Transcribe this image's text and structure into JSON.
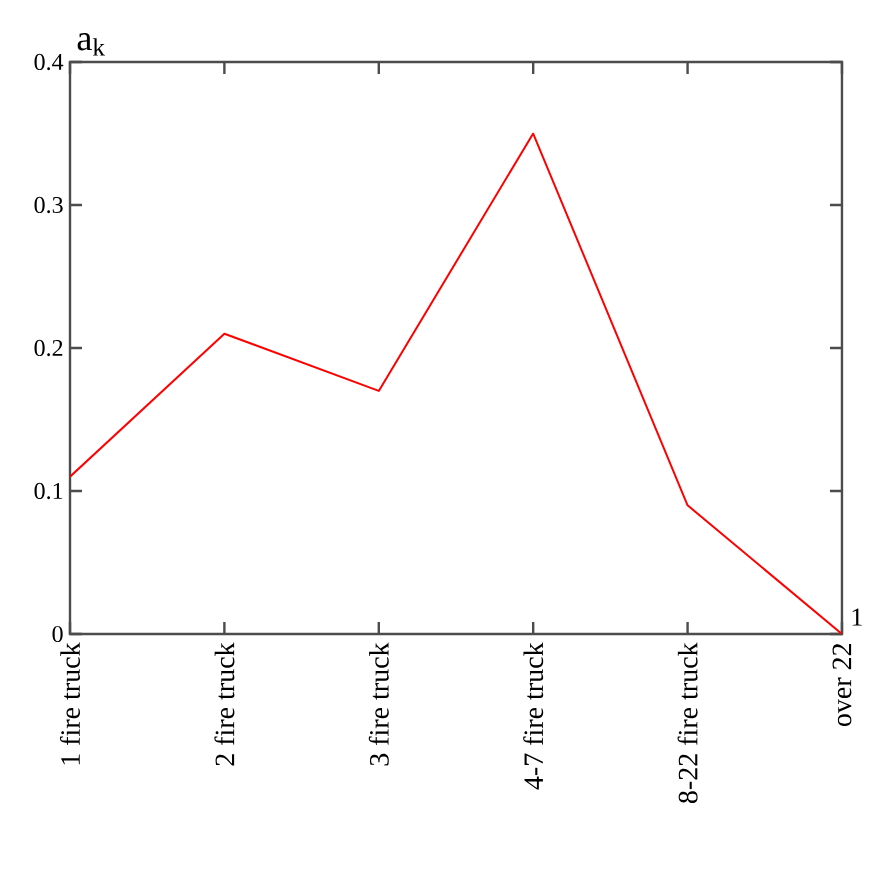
{
  "chart_data": {
    "type": "line",
    "ylabel": "a$_{k}$",
    "xlabel": "1",
    "categories": [
      "1 fire truck",
      "2 fire truck",
      "3 fire truck",
      "4-7 fire truck",
      "8-22 fire truck",
      "over 22"
    ],
    "series": [
      {
        "color": "#ff0000",
        "values": [
          0.11,
          0.21,
          0.17,
          0.35,
          0.09,
          0
        ]
      }
    ],
    "ylim": [
      0,
      0.4
    ],
    "yticks": [
      0,
      0.1,
      0.2,
      0.3,
      0.4
    ],
    "grid": false,
    "marker": "none",
    "line_style": "solid"
  }
}
